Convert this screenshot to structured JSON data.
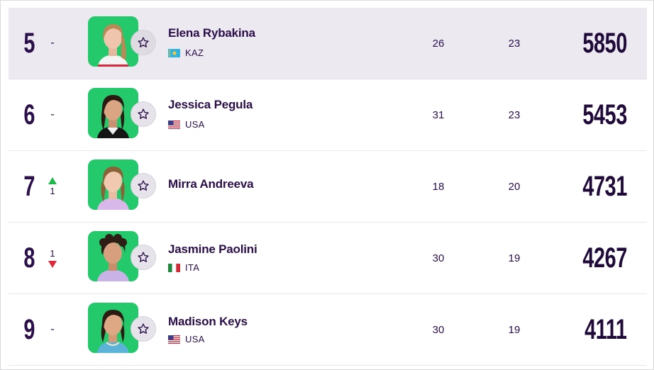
{
  "rankings": [
    {
      "rank": "5",
      "move": "-",
      "direction": "none",
      "name": "Elena Rybakina",
      "country": "KAZ",
      "flag": "kaz-flag",
      "col1": "26",
      "col2": "23",
      "points": "5850",
      "highlighted": true
    },
    {
      "rank": "6",
      "move": "-",
      "direction": "none",
      "name": "Jessica Pegula",
      "country": "USA",
      "flag": "usa-flag",
      "col1": "31",
      "col2": "23",
      "points": "5453",
      "highlighted": false
    },
    {
      "rank": "7",
      "move": "1",
      "direction": "up",
      "name": "Mirra Andreeva",
      "country": "",
      "flag": "",
      "col1": "18",
      "col2": "20",
      "points": "4731",
      "highlighted": false
    },
    {
      "rank": "8",
      "move": "1",
      "direction": "down",
      "name": "Jasmine Paolini",
      "country": "ITA",
      "flag": "ita-flag",
      "col1": "30",
      "col2": "19",
      "points": "4267",
      "highlighted": false
    },
    {
      "rank": "9",
      "move": "-",
      "direction": "none",
      "name": "Madison Keys",
      "country": "USA",
      "flag": "usa-flag",
      "col1": "30",
      "col2": "19",
      "points": "4111",
      "highlighted": false
    }
  ],
  "colors": {
    "brand_dark": "#2a0f4a",
    "avatar_bg": "#23c96a",
    "up": "#1fb84a",
    "down": "#e0263a",
    "highlight_row": "#ece9f0"
  },
  "icons": {
    "favorite": "star-outline-icon"
  }
}
